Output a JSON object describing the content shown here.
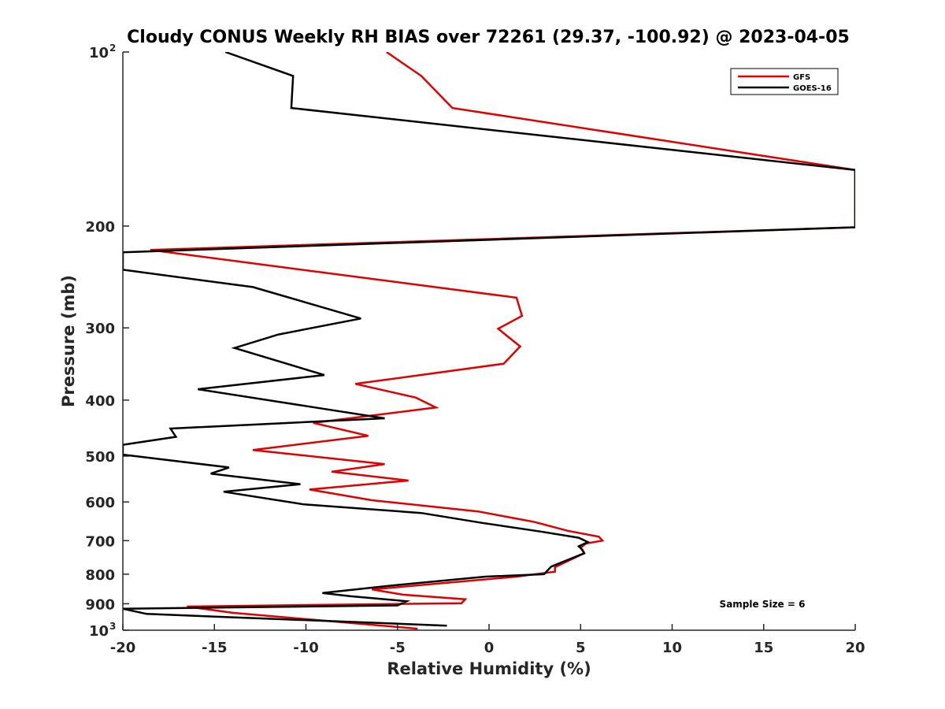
{
  "chart_data": {
    "type": "line",
    "title": "Cloudy CONUS Weekly RH BIAS over 72261 (29.37, -100.92) @ 2023-04-05",
    "xlabel": "Relative Humidity (%)",
    "ylabel": "Pressure (mb)",
    "xlim": [
      -20,
      20
    ],
    "ylim": [
      100,
      1000
    ],
    "y_scale": "log",
    "y_reversed": true,
    "x_ticks": [
      -20,
      -15,
      -10,
      -5,
      0,
      5,
      10,
      15,
      20
    ],
    "x_tick_labels": [
      "-20",
      "-15",
      "-10",
      "-5",
      "0",
      "5",
      "10",
      "15",
      "20"
    ],
    "y_ticks": [
      100,
      200,
      300,
      400,
      500,
      600,
      700,
      800,
      900,
      1000
    ],
    "y_tick_labels": [
      {
        "base": "10",
        "exp": "2"
      },
      {
        "base": "200",
        "exp": ""
      },
      {
        "base": "300",
        "exp": ""
      },
      {
        "base": "400",
        "exp": ""
      },
      {
        "base": "500",
        "exp": ""
      },
      {
        "base": "600",
        "exp": ""
      },
      {
        "base": "700",
        "exp": ""
      },
      {
        "base": "800",
        "exp": ""
      },
      {
        "base": "900",
        "exp": ""
      },
      {
        "base": "10",
        "exp": "3"
      }
    ],
    "grid": false,
    "legend_position": "top-right",
    "annotation": "Sample Size = 6",
    "series": [
      {
        "name": "GFS",
        "color": "#e00000",
        "points": [
          [
            -5.6,
            100
          ],
          [
            -3.7,
            110
          ],
          [
            -2.0,
            125
          ],
          [
            20.0,
            160
          ],
          [
            20.0,
            201
          ],
          [
            -18.5,
            220
          ],
          [
            1.5,
            266
          ],
          [
            1.8,
            286
          ],
          [
            0.5,
            301
          ],
          [
            1.7,
            323
          ],
          [
            0.8,
            346
          ],
          [
            -7.3,
            375
          ],
          [
            -4.0,
            396
          ],
          [
            -2.9,
            412
          ],
          [
            -9.6,
            438
          ],
          [
            -6.6,
            461
          ],
          [
            -12.9,
            488
          ],
          [
            -5.7,
            516
          ],
          [
            -8.6,
            532
          ],
          [
            -4.4,
            551
          ],
          [
            -9.8,
            571
          ],
          [
            -6.4,
            596
          ],
          [
            -0.6,
            623
          ],
          [
            2.5,
            650
          ],
          [
            4.3,
            673
          ],
          [
            6.0,
            689
          ],
          [
            6.2,
            700
          ],
          [
            5.3,
            708
          ],
          [
            5.0,
            720
          ],
          [
            5.2,
            736
          ],
          [
            3.6,
            778
          ],
          [
            3.6,
            792
          ],
          [
            1.5,
            808
          ],
          [
            -6.4,
            850
          ],
          [
            -4.7,
            868
          ],
          [
            -1.3,
            884
          ],
          [
            -1.5,
            898
          ],
          [
            -16.5,
            910
          ],
          [
            -14.0,
            933
          ],
          [
            -3.9,
            994
          ]
        ]
      },
      {
        "name": "GOES-16",
        "color": "#000000",
        "points": [
          [
            -14.4,
            100
          ],
          [
            -10.7,
            110
          ],
          [
            -10.8,
            125
          ],
          [
            20.0,
            160
          ],
          [
            20.0,
            201
          ],
          [
            -20.0,
            222
          ],
          [
            -20.0,
            238
          ],
          [
            -12.9,
            255
          ],
          [
            -7.0,
            289
          ],
          [
            -11.5,
            308
          ],
          [
            -13.9,
            325
          ],
          [
            -9.0,
            362
          ],
          [
            -15.9,
            383
          ],
          [
            -9.9,
            410
          ],
          [
            -5.7,
            430
          ],
          [
            -17.4,
            448
          ],
          [
            -17.1,
            463
          ],
          [
            -20.0,
            478
          ],
          [
            -20.0,
            497
          ],
          [
            -14.2,
            523
          ],
          [
            -15.2,
            536
          ],
          [
            -10.3,
            559
          ],
          [
            -14.5,
            576
          ],
          [
            -10.1,
            606
          ],
          [
            -3.7,
            627
          ],
          [
            -0.4,
            652
          ],
          [
            2.8,
            675
          ],
          [
            4.9,
            692
          ],
          [
            5.4,
            704
          ],
          [
            4.9,
            716
          ],
          [
            5.1,
            726
          ],
          [
            5.2,
            736
          ],
          [
            3.4,
            776
          ],
          [
            3.0,
            800
          ],
          [
            -0.2,
            808
          ],
          [
            -5.5,
            838
          ],
          [
            -9.1,
            862
          ],
          [
            -7.6,
            873
          ],
          [
            -4.5,
            891
          ],
          [
            -5.0,
            906
          ],
          [
            -20.0,
            918
          ],
          [
            -18.7,
            937
          ],
          [
            -2.3,
            982
          ]
        ]
      }
    ]
  }
}
